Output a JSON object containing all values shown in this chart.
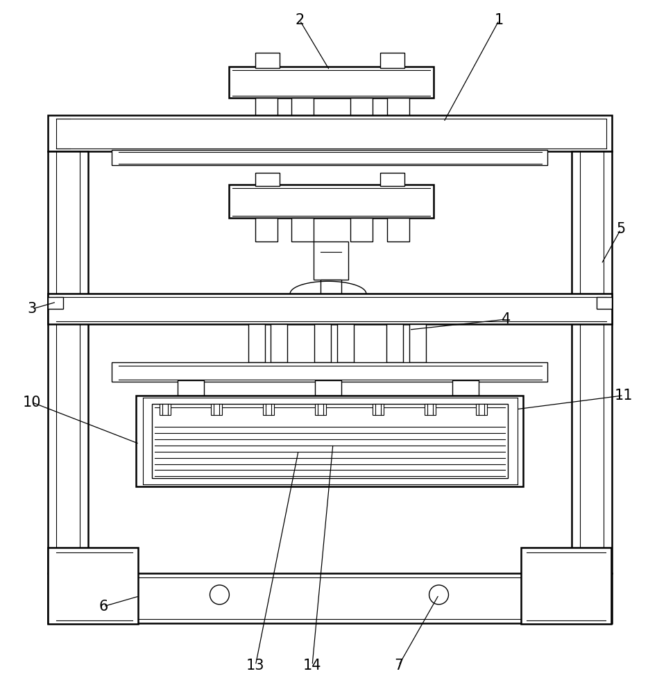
{
  "bg_color": "#ffffff",
  "line_color": "#000000",
  "fig_width": 9.47,
  "fig_height": 10.0,
  "lw_main": 1.8,
  "lw_inner": 1.0,
  "lw_detail": 0.8
}
